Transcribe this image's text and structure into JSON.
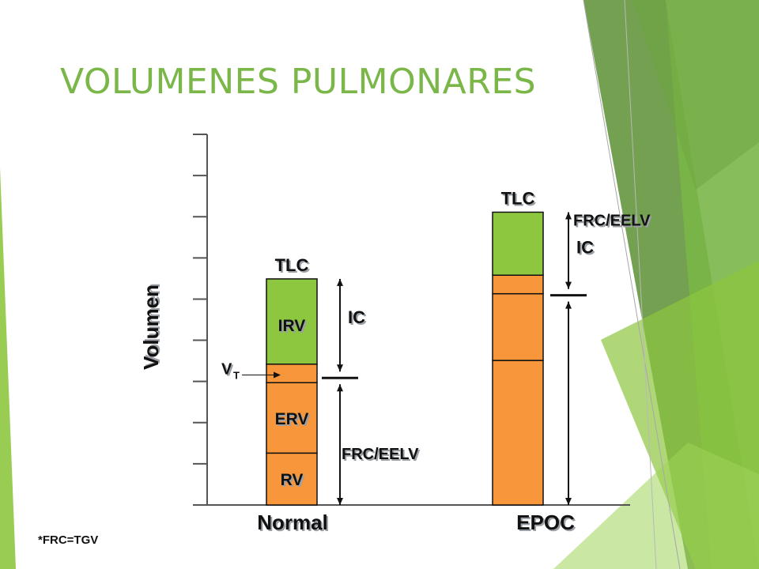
{
  "slide": {
    "title": "VOLUMENES PULMONARES",
    "footnote": "*FRC=TGV"
  },
  "colors": {
    "accent_green": "#7ab648",
    "segment_green": "#8dc63f",
    "segment_orange": "#f7963b",
    "outline": "#111111"
  },
  "chart_data": {
    "type": "bar",
    "ylabel": "Volumen",
    "y_tick_count": 10,
    "categories": [
      "Normal",
      "EPOC"
    ],
    "bars": [
      {
        "category": "Normal",
        "top_label": "TLC",
        "fractions": {
          "rv": 0.14,
          "erv_top": 0.33,
          "vt_top": 0.38,
          "tlc": 0.61
        },
        "segment_labels": {
          "rv": "RV",
          "erv": "ERV",
          "irv": "IRV"
        },
        "vt_label": "V",
        "vt_subscript": "T",
        "ic_label": "IC",
        "frc_label": "FRC/EELV"
      },
      {
        "category": "EPOC",
        "top_label": "TLC",
        "fractions": {
          "rv": 0.39,
          "erv_top": 0.57,
          "vt_top": 0.62,
          "tlc": 0.79
        },
        "ic_label": "IC",
        "frc_label": "FRC/EELV"
      }
    ]
  }
}
